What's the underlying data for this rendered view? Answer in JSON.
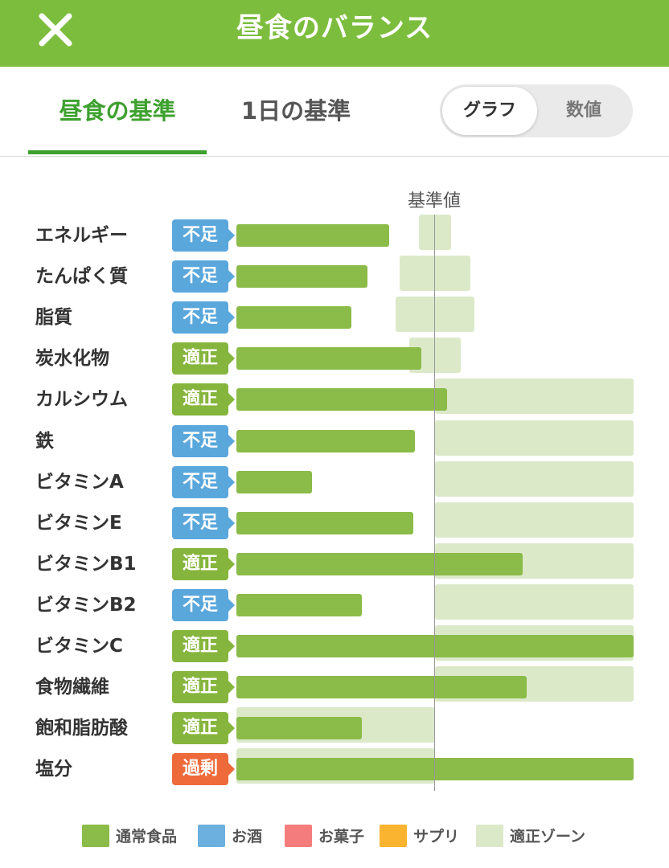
{
  "header": {
    "title": "昼食のバランス",
    "close_icon": "close-icon"
  },
  "tabs": [
    {
      "label": "昼食の基準",
      "active": true
    },
    {
      "label": "1日の基準",
      "active": false
    }
  ],
  "view_toggle": {
    "options": [
      "グラフ",
      "数値"
    ],
    "selected": "グラフ"
  },
  "chart_data": {
    "type": "bar",
    "reference_label": "基準値",
    "status_colors": {
      "不足": "#5aa7dc",
      "適正": "#86b53d",
      "過剰": "#ee6a3a"
    },
    "rows": [
      {
        "name": "エネルギー",
        "status": "不足",
        "value": 77,
        "zone": [
          92,
          108
        ]
      },
      {
        "name": "たんぱく質",
        "status": "不足",
        "value": 66,
        "zone": [
          82,
          118
        ]
      },
      {
        "name": "脂質",
        "status": "不足",
        "value": 58,
        "zone": [
          80,
          120
        ]
      },
      {
        "name": "炭水化物",
        "status": "適正",
        "value": 93,
        "zone": [
          87,
          113
        ]
      },
      {
        "name": "カルシウム",
        "status": "適正",
        "value": 106,
        "zone": [
          100,
          200
        ]
      },
      {
        "name": "鉄",
        "status": "不足",
        "value": 90,
        "zone": [
          100,
          200
        ]
      },
      {
        "name": "ビタミンA",
        "status": "不足",
        "value": 38,
        "zone": [
          100,
          200
        ]
      },
      {
        "name": "ビタミンE",
        "status": "不足",
        "value": 89,
        "zone": [
          100,
          200
        ]
      },
      {
        "name": "ビタミンB1",
        "status": "適正",
        "value": 144,
        "zone": [
          100,
          200
        ]
      },
      {
        "name": "ビタミンB2",
        "status": "不足",
        "value": 63,
        "zone": [
          100,
          200
        ]
      },
      {
        "name": "ビタミンC",
        "status": "適正",
        "value": 200,
        "zone": [
          100,
          200
        ]
      },
      {
        "name": "食物繊維",
        "status": "適正",
        "value": 146,
        "zone": [
          100,
          200
        ]
      },
      {
        "name": "飽和脂肪酸",
        "status": "適正",
        "value": 63,
        "zone": [
          0,
          100
        ]
      },
      {
        "name": "塩分",
        "status": "過剰",
        "value": 200,
        "zone": [
          0,
          100
        ]
      }
    ]
  },
  "legend": [
    {
      "label": "通常食品",
      "color": "#8bbb48"
    },
    {
      "label": "お酒",
      "color": "#6cb0e0"
    },
    {
      "label": "お菓子",
      "color": "#f47c7c"
    },
    {
      "label": "サプリ",
      "color": "#fbb430"
    },
    {
      "label": "適正ゾーン",
      "color": "#dbe9c9"
    }
  ]
}
